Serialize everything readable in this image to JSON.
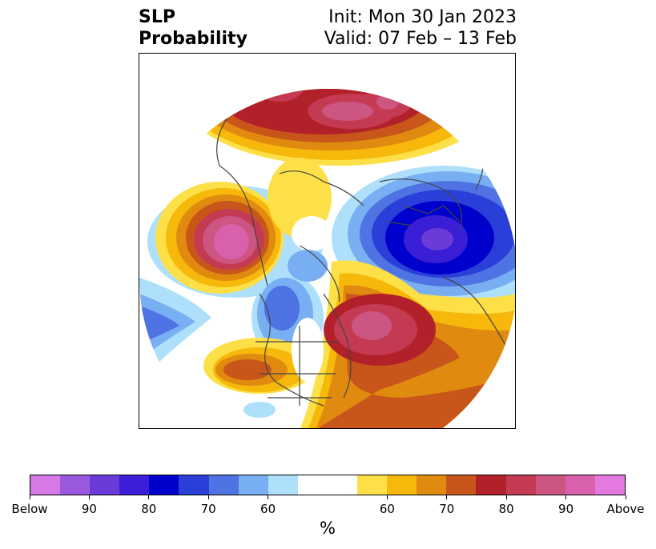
{
  "title": {
    "left_line1": "SLP",
    "left_line2": "Probability",
    "right_line1": "Init: Mon 30 Jan 2023",
    "right_line2": "Valid: 07 Feb – 13 Feb"
  },
  "colorbar": {
    "label": "%",
    "colors": [
      "#d679e6",
      "#9b59e0",
      "#6a3bd8",
      "#3a1fd6",
      "#0000cc",
      "#2a3fd8",
      "#4f73e3",
      "#78aef2",
      "#aee0fb",
      "#ffffff",
      "#ffffff",
      "#fde047",
      "#f6b80b",
      "#e08a10",
      "#c8561a",
      "#b2202a",
      "#c33a52",
      "#cc5582",
      "#d960aa",
      "#e27ae0"
    ],
    "tick_labels": [
      "Below",
      "90",
      "80",
      "70",
      "60",
      "60",
      "70",
      "80",
      "90",
      "Above"
    ]
  },
  "map": {
    "projection": "north polar stereographic",
    "variable": "sea level pressure tercile probability",
    "anomaly_regions": [
      {
        "area": "northern Eurasia / Siberia",
        "category": "above",
        "max_prob": 80
      },
      {
        "area": "northeast Pacific / Gulf of Alaska",
        "category": "above",
        "max_prob": 85
      },
      {
        "area": "western Atlantic / Newfoundland",
        "category": "above",
        "max_prob": 80
      },
      {
        "area": "southern United States",
        "category": "above",
        "max_prob": 70
      },
      {
        "area": "eastern North Atlantic / Europe",
        "category": "below",
        "max_prob": 95
      },
      {
        "area": "western Canada / Hudson Bay",
        "category": "below",
        "max_prob": 75
      },
      {
        "area": "subtropical central Pacific",
        "category": "below",
        "max_prob": 70
      }
    ]
  }
}
